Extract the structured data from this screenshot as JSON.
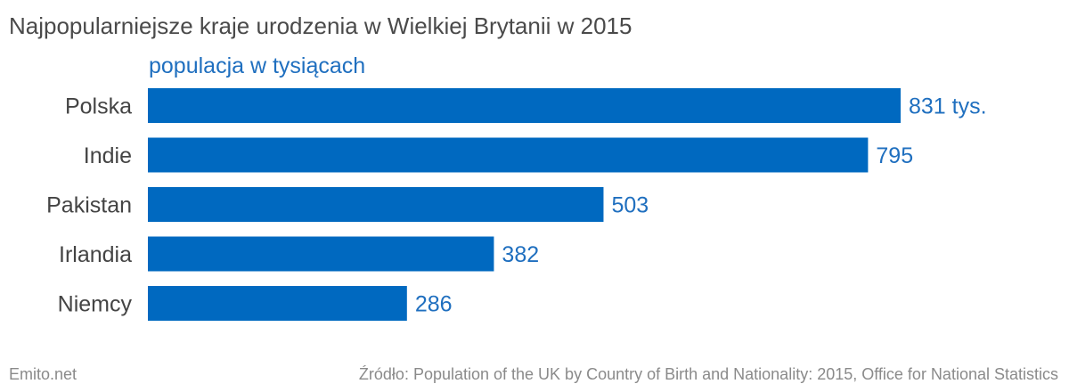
{
  "title": "Najpopularniejsze kraje urodzenia w Wielkiej Brytanii w 2015",
  "subtitle": "populacja w tysiącach",
  "footer": {
    "brand": "Emito.net",
    "source": "Źródło: Population of the UK by Country of Birth and Nationality: 2015, Office for National Statistics"
  },
  "colors": {
    "bar": "#0069c0",
    "value_text": "#1f6fbf",
    "category_text": "#444444"
  },
  "chart_data": {
    "type": "bar",
    "orientation": "horizontal",
    "categories": [
      "Polska",
      "Indie",
      "Pakistan",
      "Irlandia",
      "Niemcy"
    ],
    "values": [
      831,
      795,
      503,
      382,
      286
    ],
    "value_labels": [
      "831 tys.",
      "795",
      "503",
      "382",
      "286"
    ],
    "title": "Najpopularniejsze kraje urodzenia w Wielkiej Brytanii w 2015",
    "subtitle": "populacja w tysiącach",
    "xlim": [
      0,
      831
    ],
    "grid": false
  }
}
